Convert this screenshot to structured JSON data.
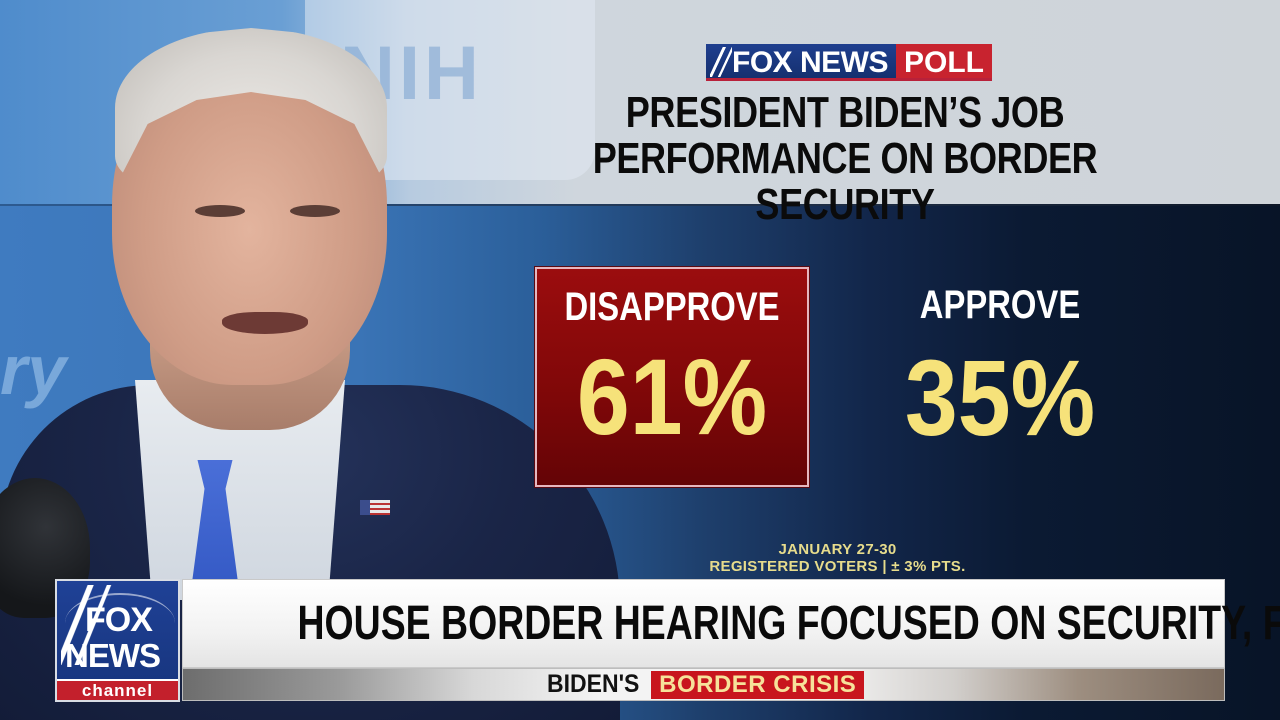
{
  "poll_graphic": {
    "brand_fox": "FOX NEWS",
    "brand_poll": "POLL",
    "title_line1": "PRESIDENT BIDEN’S JOB",
    "title_line2": "PERFORMANCE ON BORDER SECURITY",
    "disapprove_label": "DISAPPROVE",
    "disapprove_value": "61%",
    "approve_label": "APPROVE",
    "approve_value": "35%",
    "meta_line1": "JANUARY 27-30",
    "meta_line2": "REGISTERED VOTERS | ± 3% PTS."
  },
  "background": {
    "sign_text": "NIH",
    "sign_partial_text": "ry"
  },
  "lower_third": {
    "logo_fox": "FOX",
    "logo_news": "NEWS",
    "logo_channel": "channel",
    "headline": "HOUSE BORDER HEARING FOCUSED ON SECURITY, FENTANYL",
    "topic_prefix": "BIDEN'S",
    "topic_badge": "BORDER CRISIS"
  },
  "colors": {
    "disapprove_box": "#8b0a0b",
    "value_yellow": "#f6e27a",
    "fox_blue": "#1f3f8f",
    "fox_red": "#c8232f",
    "meta_text": "#e7dc8c"
  },
  "chart_data": {
    "type": "bar",
    "title": "PRESIDENT BIDEN’S JOB PERFORMANCE ON BORDER SECURITY",
    "source": "FOX NEWS POLL",
    "categories": [
      "DISAPPROVE",
      "APPROVE"
    ],
    "values": [
      61,
      35
    ],
    "unit": "%",
    "annotations": [
      "JANUARY 27-30",
      "REGISTERED VOTERS | ± 3% PTS."
    ],
    "xlabel": "",
    "ylabel": "",
    "ylim": [
      0,
      100
    ],
    "grid": false,
    "legend": "none"
  }
}
